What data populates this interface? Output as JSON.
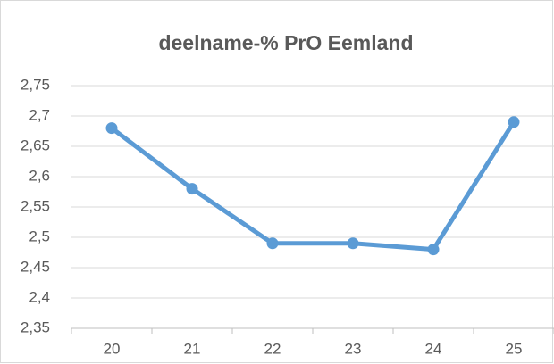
{
  "chart_data": {
    "type": "line",
    "title": "deelname-% PrO Eemland",
    "categories": [
      "20",
      "21",
      "22",
      "23",
      "24",
      "25"
    ],
    "values": [
      2.68,
      2.58,
      2.49,
      2.49,
      2.48,
      2.69
    ],
    "color": "#5b9bd5",
    "ylim": [
      2.35,
      2.75
    ],
    "yticks": [
      {
        "value": 2.35,
        "label": "2,35"
      },
      {
        "value": 2.4,
        "label": "2,4"
      },
      {
        "value": 2.45,
        "label": "2,45"
      },
      {
        "value": 2.5,
        "label": "2,5"
      },
      {
        "value": 2.55,
        "label": "2,55"
      },
      {
        "value": 2.6,
        "label": "2,6"
      },
      {
        "value": 2.65,
        "label": "2,65"
      },
      {
        "value": 2.7,
        "label": "2,7"
      },
      {
        "value": 2.75,
        "label": "2,75"
      }
    ],
    "grid": true
  }
}
